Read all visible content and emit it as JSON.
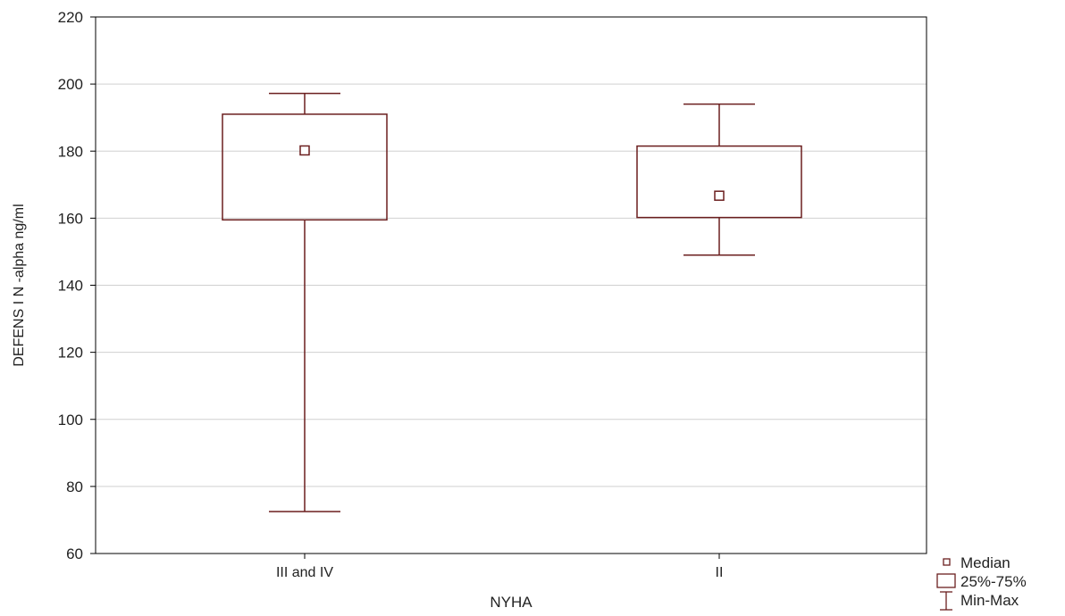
{
  "colors": {
    "box_stroke": "#6b1f1f",
    "grid": "#d0d0d0",
    "axis": "#000000",
    "background": "#ffffff"
  },
  "chart_data": {
    "type": "box",
    "title": "",
    "xlabel": "NYHA",
    "ylabel": "DEFENS I N  -alpha ng/ml",
    "ylim": [
      60,
      220
    ],
    "yticks": [
      "60",
      "80",
      "100",
      "120",
      "140",
      "160",
      "180",
      "200",
      "220"
    ],
    "grid": "horizontal",
    "categories": [
      "III and IV",
      "II"
    ],
    "boxes": [
      {
        "category": "III and IV",
        "min": 72.5,
        "q1": 159.5,
        "median": 180.2,
        "q3": 191,
        "max": 197.2
      },
      {
        "category": "II",
        "min": 149,
        "q1": 160.2,
        "median": 166.7,
        "q3": 181.5,
        "max": 194
      }
    ],
    "legend": {
      "placement": "bottom-right",
      "entries": [
        {
          "label": "Median",
          "icon": "small-square-icon"
        },
        {
          "label": "25%-75%",
          "icon": "box-icon"
        },
        {
          "label": "Min-Max",
          "icon": "whisker-icon"
        }
      ]
    }
  }
}
